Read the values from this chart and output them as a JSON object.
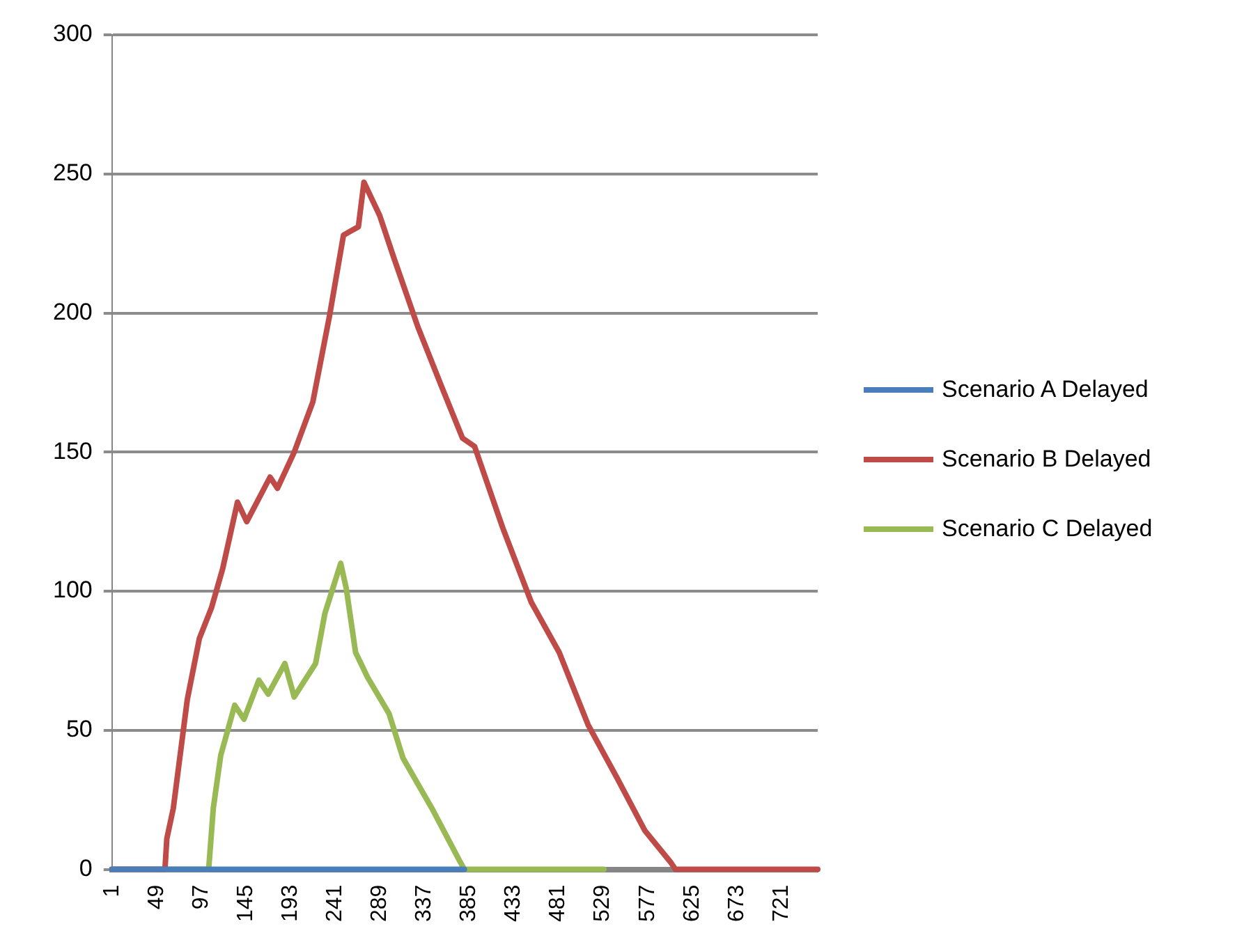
{
  "chart_data": {
    "type": "line",
    "xlim": [
      1,
      760
    ],
    "xticks": [
      1,
      49,
      97,
      145,
      193,
      241,
      289,
      337,
      385,
      433,
      481,
      529,
      577,
      625,
      673,
      721
    ],
    "ylim": [
      0,
      300
    ],
    "yticks": [
      0,
      50,
      100,
      150,
      200,
      250,
      300
    ],
    "grid": "y",
    "legend": "right",
    "marker": "none",
    "line_style": "solid",
    "series": [
      {
        "name": "Scenario A Delayed",
        "color": "#4a7ebb",
        "x": [
          1,
          380
        ],
        "values": [
          0,
          0
        ]
      },
      {
        "name": "Scenario B Delayed",
        "color": "#be4b48",
        "x": [
          1,
          58,
          60,
          67,
          82,
          95,
          108,
          120,
          136,
          146,
          171,
          179,
          197,
          217,
          235,
          250,
          266,
          272,
          289,
          304,
          330,
          355,
          378,
          391,
          421,
          452,
          482,
          513,
          544,
          574,
          602,
          607,
          760
        ],
        "values": [
          0,
          0,
          11,
          22,
          61,
          83,
          94,
          108,
          132,
          125,
          141,
          137,
          150,
          168,
          199,
          228,
          231,
          247,
          235,
          220,
          195,
          174,
          155,
          152,
          123,
          96,
          78,
          52,
          33,
          14,
          2.5,
          0,
          0
        ]
      },
      {
        "name": "Scenario C Delayed",
        "color": "#98b954",
        "x": [
          1,
          105,
          110,
          118,
          133,
          143,
          159,
          169,
          187,
          197,
          220,
          230,
          247,
          253,
          263,
          276,
          299,
          314,
          345,
          375,
          380,
          530
        ],
        "values": [
          0,
          0,
          22,
          41,
          59,
          54,
          68,
          63,
          74,
          62,
          74,
          92,
          110,
          101,
          78,
          69,
          56,
          40,
          22,
          3,
          0,
          0
        ]
      }
    ]
  }
}
